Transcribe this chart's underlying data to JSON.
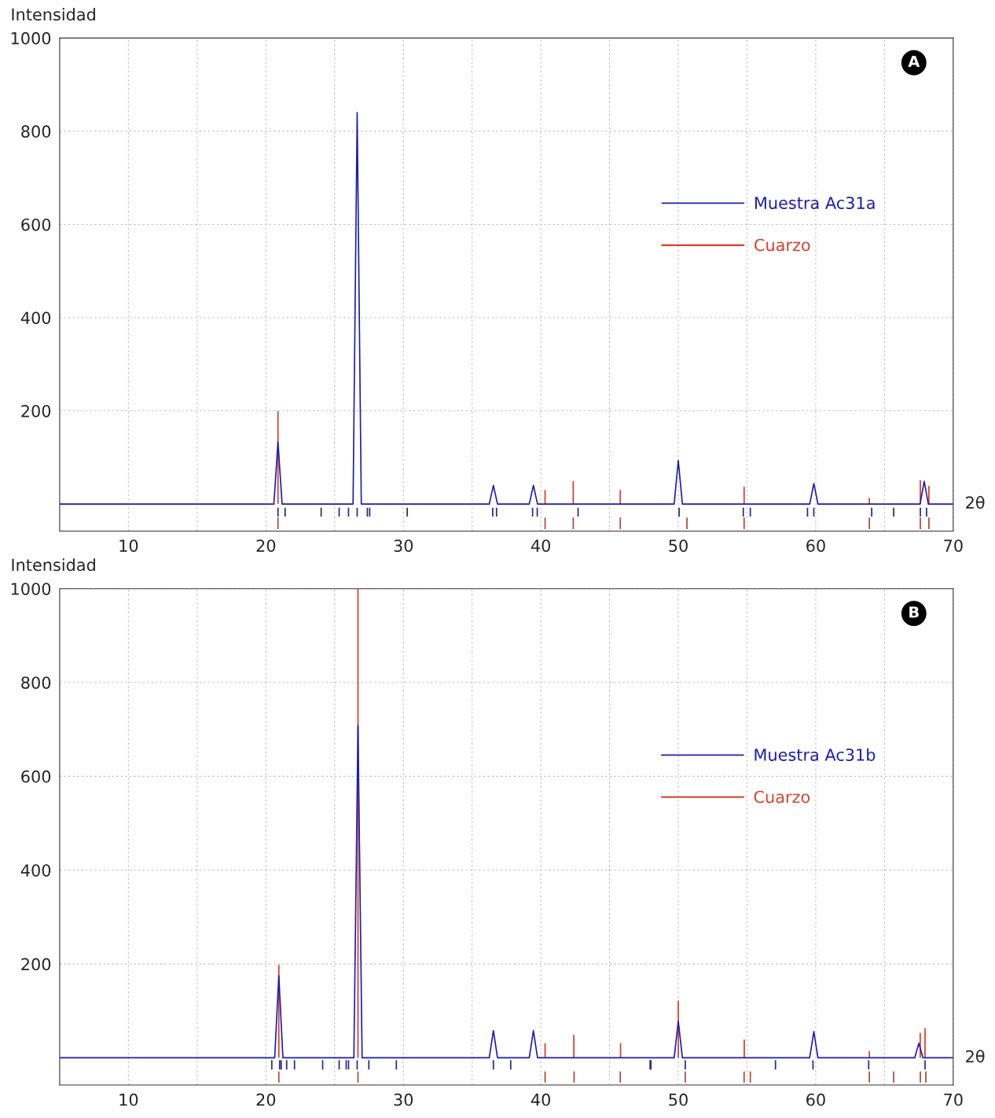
{
  "chart_data": [
    {
      "type": "line",
      "ylabel": "Intensidad",
      "xlabel": "2θ",
      "xlim": [
        5,
        70
      ],
      "ylim": [
        -58,
        1000
      ],
      "xticks": [
        10,
        {
          "value": 15,
          "label": null
        },
        20,
        {
          "value": 25,
          "label": null
        },
        30,
        {
          "value": 35,
          "label": null
        },
        40,
        {
          "value": 45,
          "label": null
        },
        50,
        {
          "value": 55,
          "label": null
        },
        60,
        {
          "value": 65,
          "label": null
        },
        70
      ],
      "yticks": [
        200,
        400,
        600,
        800,
        1000
      ],
      "grid": true,
      "legend": "right",
      "annotations": [
        "A"
      ],
      "series": [
        {
          "name": "Muestra Ac31a",
          "color": "#1c1cb0",
          "x": [
            5,
            20.58,
            20.88,
            21.18,
            26.34,
            26.64,
            26.94,
            36.25,
            36.55,
            36.85,
            39.16,
            39.46,
            39.76,
            49.7,
            50.0,
            50.3,
            59.56,
            59.86,
            60.16,
            67.59,
            67.89,
            68.19,
            70
          ],
          "values": [
            0,
            0,
            133,
            0,
            0,
            840,
            0,
            0,
            40,
            0,
            0,
            40,
            0,
            0,
            93,
            0,
            0,
            44,
            0,
            0,
            49,
            0,
            0
          ]
        },
        {
          "name": "Cuarzo",
          "type": "bar",
          "color": "#d8402a",
          "x": [
            20.88,
            40.31,
            42.36,
            45.78,
            54.79,
            63.9,
            67.61,
            68.23
          ],
          "values": [
            199,
            30,
            49,
            30,
            37,
            13,
            51,
            39
          ]
        },
        {
          "type": "bar",
          "color": "#2b2b86",
          "x": [
            20.88,
            21.4,
            24.02,
            25.33,
            26.01,
            26.64,
            27.38,
            27.55,
            30.28,
            36.5,
            36.78,
            39.4,
            39.74,
            42.71,
            50.06,
            54.73,
            55.24,
            59.4,
            59.86,
            64.07,
            65.67,
            67.61,
            68.06
          ],
          "values": [
            19,
            19,
            19,
            19,
            19,
            19,
            19,
            19,
            19,
            19,
            19,
            19,
            19,
            19,
            19,
            19,
            19,
            19,
            19,
            19,
            19,
            19,
            19
          ],
          "base": [
            -27,
            -27,
            -27,
            -27,
            -27,
            -27,
            -27,
            -27,
            -27,
            -27,
            -27,
            -27,
            -27,
            -27,
            -27,
            -27,
            -27,
            -27,
            -27,
            -27,
            -27,
            -27,
            -27
          ]
        },
        {
          "type": "bar",
          "color": "#a8503c",
          "x": [
            20.88,
            40.31,
            42.36,
            45.78,
            50.63,
            54.79,
            63.9,
            67.61,
            68.23
          ],
          "values": [
            25,
            25,
            25,
            25,
            25,
            25,
            25,
            25,
            25
          ],
          "base": [
            -54,
            -54,
            -54,
            -54,
            -54,
            -54,
            -54,
            -54,
            -54
          ]
        }
      ]
    },
    {
      "type": "line",
      "ylabel": "Intensidad",
      "xlabel": "2θ",
      "xlim": [
        5,
        70
      ],
      "ylim": [
        -58,
        1000
      ],
      "xticks": [
        10,
        {
          "value": 15,
          "label": null
        },
        20,
        {
          "value": 25,
          "label": null
        },
        30,
        {
          "value": 35,
          "label": null
        },
        40,
        {
          "value": 45,
          "label": null
        },
        50,
        {
          "value": 55,
          "label": null
        },
        60,
        {
          "value": 65,
          "label": null
        },
        70
      ],
      "yticks": [
        200,
        400,
        600,
        800,
        1000
      ],
      "grid": true,
      "legend": "right",
      "annotations": [
        "B"
      ],
      "series": [
        {
          "name": "Muestra Ac31b",
          "color": "#1c1cb0",
          "x": [
            5,
            20.64,
            20.94,
            21.24,
            26.4,
            26.7,
            27.0,
            36.25,
            36.55,
            36.85,
            39.16,
            39.46,
            39.76,
            49.7,
            50.0,
            50.3,
            59.56,
            59.86,
            60.16,
            67.2,
            67.5,
            67.8,
            70
          ],
          "values": [
            0,
            0,
            175,
            0,
            0,
            708,
            0,
            0,
            58,
            0,
            0,
            58,
            0,
            0,
            78,
            0,
            0,
            56,
            0,
            0,
            31,
            0,
            0
          ]
        },
        {
          "name": "Cuarzo",
          "type": "bar",
          "color": "#d8402a",
          "x": [
            20.94,
            26.7,
            40.31,
            42.4,
            45.8,
            50.0,
            54.8,
            63.9,
            67.6,
            67.95
          ],
          "values": [
            198,
            1000,
            31,
            49,
            31,
            122,
            39,
            14,
            53,
            63
          ]
        },
        {
          "type": "bar",
          "color": "#2b2b86",
          "x": [
            20.43,
            21.0,
            21.11,
            21.51,
            22.08,
            24.13,
            25.33,
            25.84,
            26.01,
            26.64,
            27.49,
            29.49,
            36.55,
            37.81,
            47.95,
            48.01,
            50.51,
            57.07,
            59.8,
            63.85,
            67.95
          ],
          "values": [
            20,
            20,
            20,
            20,
            20,
            20,
            20,
            20,
            20,
            20,
            20,
            20,
            20,
            20,
            20,
            20,
            20,
            20,
            20,
            20,
            20
          ],
          "base": [
            -25,
            -25,
            -25,
            -25,
            -25,
            -25,
            -25,
            -25,
            -25,
            -25,
            -25,
            -25,
            -25,
            -25,
            -25,
            -25,
            -25,
            -25,
            -25,
            -25,
            -25
          ]
        },
        {
          "type": "bar",
          "color": "#a8503c",
          "x": [
            20.94,
            26.7,
            40.31,
            42.42,
            45.78,
            50.51,
            54.79,
            55.24,
            63.9,
            65.67,
            67.61,
            68.01
          ],
          "values": [
            24,
            24,
            24,
            24,
            24,
            24,
            24,
            24,
            24,
            24,
            24,
            24
          ],
          "base": [
            -53,
            -53,
            -53,
            -53,
            -53,
            -53,
            -53,
            -53,
            -53,
            -53,
            -53,
            -53
          ]
        }
      ]
    }
  ]
}
